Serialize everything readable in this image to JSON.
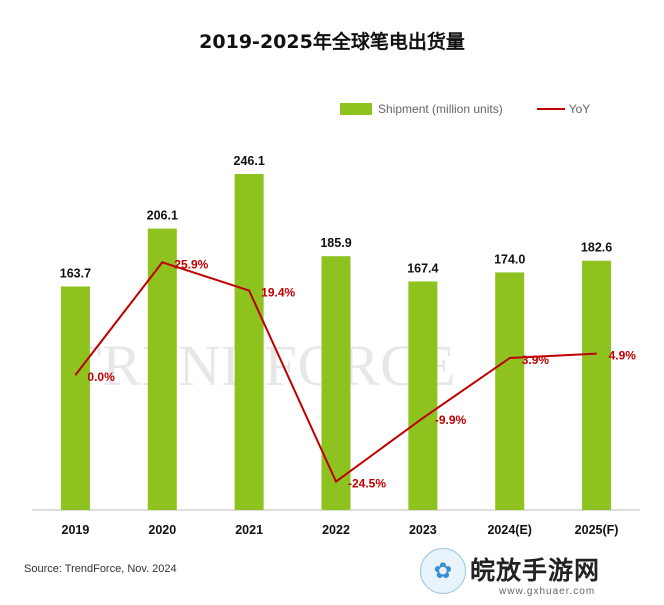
{
  "chart_data": {
    "type": "bar+line",
    "title": "2019-2025年全球笔电出货量",
    "categories": [
      "2019",
      "2020",
      "2021",
      "2022",
      "2023",
      "2024(E)",
      "2025(F)"
    ],
    "series": [
      {
        "name": "Shipment (million units)",
        "type": "bar",
        "color": "#8dc21f",
        "values": [
          163.7,
          206.1,
          246.1,
          185.9,
          167.4,
          174.0,
          182.6
        ],
        "labels": [
          "163.7",
          "206.1",
          "246.1",
          "185.9",
          "167.4",
          "174.0",
          "182.6"
        ]
      },
      {
        "name": "YoY",
        "type": "line",
        "color": "#c00000",
        "values": [
          0.0,
          25.9,
          19.4,
          -24.5,
          -9.9,
          3.9,
          4.9
        ],
        "labels": [
          "0.0%",
          "25.9%",
          "19.4%",
          "-24.5%",
          "-9.9%",
          "3.9%",
          "4.9%"
        ]
      }
    ],
    "legend_position": "top-right",
    "grid": false
  },
  "legend": {
    "bar_label": "Shipment (million units)",
    "line_label": "YoY"
  },
  "source": "Source: TrendForce, Nov. 2024",
  "watermark": {
    "background_text": "TRENDFORCE",
    "site_name": "皖放手游网",
    "site_url": "www.gxhuaer.com"
  }
}
